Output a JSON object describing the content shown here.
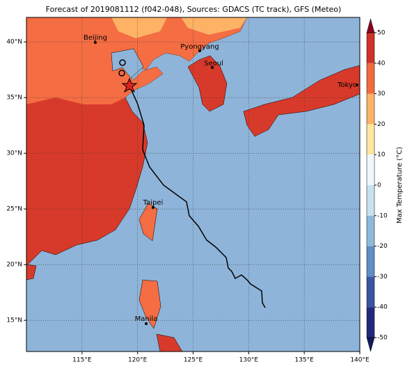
{
  "title": "Forecast of 2019081112 (f042-048), Sources: GDACS (TC track), GFS (Meteo)",
  "map": {
    "xlim": [
      110,
      140
    ],
    "ylim": [
      12.2,
      42.2
    ],
    "xticks": [
      {
        "value": 115,
        "label": "115°E"
      },
      {
        "value": 120,
        "label": "120°E"
      },
      {
        "value": 125,
        "label": "125°E"
      },
      {
        "value": 130,
        "label": "130°E"
      },
      {
        "value": 135,
        "label": "135°E"
      },
      {
        "value": 140,
        "label": "140°E"
      }
    ],
    "yticks": [
      {
        "value": 15,
        "label": "15°N"
      },
      {
        "value": 20,
        "label": "20°N"
      },
      {
        "value": 25,
        "label": "25°N"
      },
      {
        "value": 30,
        "label": "30°N"
      },
      {
        "value": 35,
        "label": "35°N"
      },
      {
        "value": 40,
        "label": "40°N"
      }
    ],
    "grid": true,
    "cities": [
      "Beijing",
      "Pyongyang",
      "Seoul",
      "Tokyo",
      "Taipei",
      "Manila"
    ]
  },
  "colorbar": {
    "label": "Max Temperature (°C)",
    "lim": [
      -50,
      50
    ],
    "ticks": [
      -50,
      -40,
      -30,
      -20,
      -10,
      0,
      10,
      20,
      30,
      40,
      50
    ],
    "colors": [
      "#23297a",
      "#3a55a4",
      "#5d8fc2",
      "#8fb9da",
      "#c5e2ee",
      "#eef8fb",
      "#fde7a0",
      "#fdb266",
      "#f26b3c",
      "#d0302a"
    ],
    "under_color": "#141a5c",
    "over_color": "#8b0021"
  }
}
